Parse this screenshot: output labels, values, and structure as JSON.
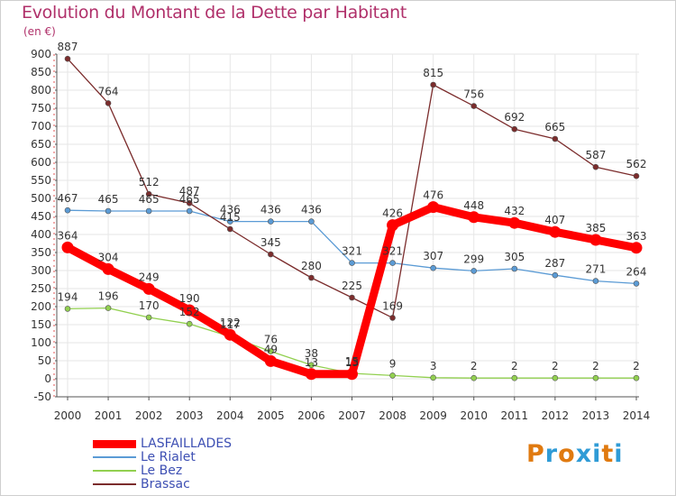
{
  "page": {
    "title": "Evolution du Montant de la Dette par Habitant",
    "unit": "(en €)"
  },
  "logo": {
    "text": "Proxiti",
    "colors": [
      "#e07a10",
      "#2f9bd6",
      "#e07a10",
      "#2f9bd6",
      "#2f9bd6",
      "#e07a10",
      "#2f9bd6"
    ]
  },
  "chart_data": {
    "type": "line",
    "title": "Evolution du Montant de la Dette par Habitant",
    "ylabel": "(en €)",
    "xlabel": "",
    "x": [
      "2000",
      "2001",
      "2002",
      "2003",
      "2004",
      "2005",
      "2006",
      "2007",
      "2008",
      "2009",
      "2010",
      "2011",
      "2012",
      "2013",
      "2014"
    ],
    "ylim": [
      -50,
      900
    ],
    "yticks": [
      -50,
      0,
      50,
      100,
      150,
      200,
      250,
      300,
      350,
      400,
      450,
      500,
      550,
      600,
      650,
      700,
      750,
      800,
      850,
      900
    ],
    "grid": true,
    "legend_position": "bottom-left",
    "series": [
      {
        "name": "LASFAILLADES",
        "color": "#ff0000",
        "emphasis": true,
        "values": [
          364,
          304,
          249,
          190,
          122,
          49,
          13,
          13,
          426,
          476,
          448,
          432,
          407,
          385,
          363
        ],
        "labels": [
          "364",
          "304",
          "249",
          "190",
          "122",
          "49",
          "13",
          "13",
          "426",
          "476",
          "448",
          "432",
          "407",
          "385",
          "363"
        ]
      },
      {
        "name": "Le Rialet",
        "color": "#5b9bd5",
        "emphasis": false,
        "values": [
          467,
          465,
          465,
          465,
          436,
          436,
          436,
          321,
          321,
          307,
          299,
          305,
          287,
          271,
          264
        ],
        "labels": [
          "467",
          "465",
          "465",
          "465",
          "436",
          "436",
          "436",
          "321",
          "321",
          "307",
          "299",
          "305",
          "287",
          "271",
          "264"
        ]
      },
      {
        "name": "Le Bez",
        "color": "#92d050",
        "emphasis": false,
        "values": [
          194,
          196,
          170,
          152,
          117,
          76,
          38,
          15,
          9,
          3,
          2,
          2,
          2,
          2,
          2
        ],
        "labels": [
          "194",
          "196",
          "170",
          "152",
          "117",
          "76",
          "38",
          "15",
          "9",
          "3",
          "2",
          "2",
          "2",
          "2",
          "2"
        ]
      },
      {
        "name": "Brassac",
        "color": "#7b2c2c",
        "emphasis": false,
        "values": [
          887,
          764,
          512,
          487,
          415,
          345,
          280,
          225,
          169,
          815,
          756,
          692,
          665,
          587,
          562
        ],
        "labels": [
          "887",
          "764",
          "512",
          "487",
          "415",
          "345",
          "280",
          "225",
          "169",
          "815",
          "756",
          "692",
          "665",
          "587",
          "562"
        ]
      }
    ]
  }
}
